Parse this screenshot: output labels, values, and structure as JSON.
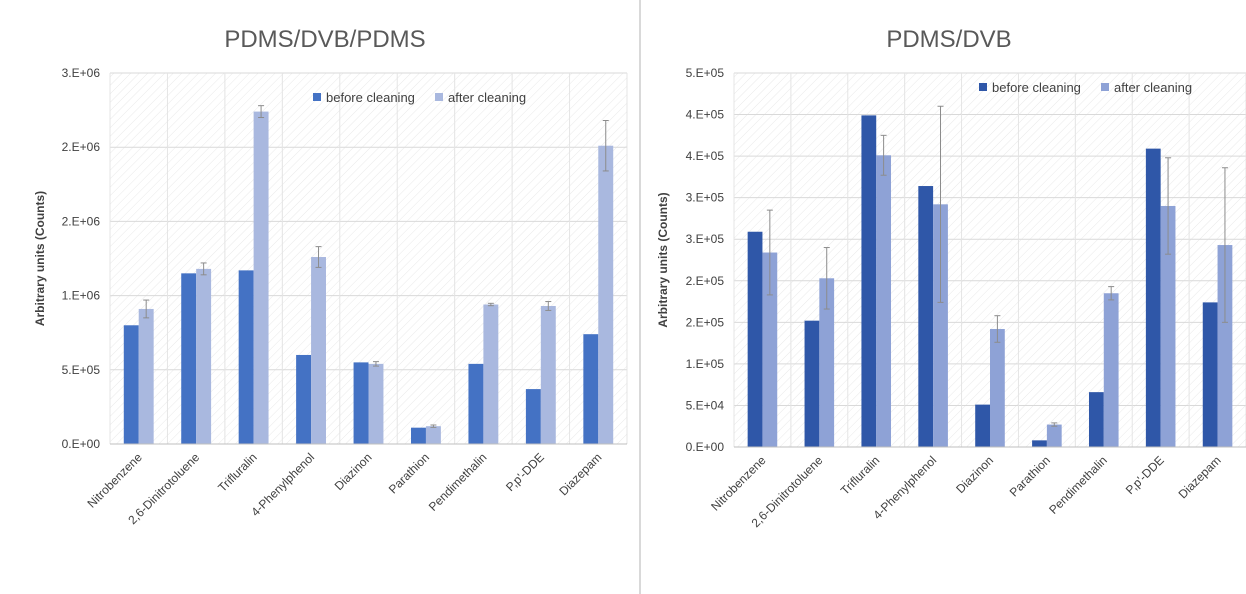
{
  "chart_data": [
    {
      "type": "bar",
      "title": "PDMS/DVB/PDMS",
      "ylabel": "Arbitrary units (Counts)",
      "ylim": [
        0,
        2500000
      ],
      "yticks": [
        "0.E+00",
        "5.E+05",
        "1.E+06",
        "2.E+06",
        "2.E+06",
        "3.E+06"
      ],
      "categories": [
        "Nitrobenzene",
        "2,6-Dinitrotoluene",
        "Trifluralin",
        "4-Phenylphenol",
        "Diazinon",
        "Parathion",
        "Pendimethalin",
        "P,p'-DDE",
        "Diazepam"
      ],
      "series": [
        {
          "name": "before cleaning",
          "color": "#4472c4",
          "values": [
            800000,
            1150000,
            1170000,
            600000,
            550000,
            110000,
            540000,
            370000,
            740000
          ],
          "errors": [
            0,
            0,
            0,
            0,
            0,
            0,
            0,
            0,
            0
          ]
        },
        {
          "name": "after cleaning",
          "color": "#a9b8df",
          "values": [
            910000,
            1180000,
            2240000,
            1260000,
            540000,
            120000,
            940000,
            930000,
            2010000
          ],
          "errors": [
            60000,
            40000,
            40000,
            70000,
            15000,
            8000,
            8000,
            30000,
            170000
          ]
        }
      ],
      "legend_position": "top-right",
      "grid": true
    },
    {
      "type": "bar",
      "title": "PDMS/DVB",
      "ylabel": "Arbitrary units (Counts)",
      "ylim": [
        0,
        450000
      ],
      "yticks": [
        "0.E+00",
        "5.E+04",
        "1.E+05",
        "2.E+05",
        "2.E+05",
        "3.E+05",
        "3.E+05",
        "4.E+05",
        "4.E+05",
        "5.E+05"
      ],
      "categories": [
        "Nitrobenzene",
        "2,6-Dinitrotoluene",
        "Trifluralin",
        "4-Phenylphenol",
        "Diazinon",
        "Parathion",
        "Pendimethalin",
        "P,p'-DDE",
        "Diazepam"
      ],
      "series": [
        {
          "name": "before cleaning",
          "color": "#2f57a8",
          "values": [
            259000,
            152000,
            399000,
            314000,
            51000,
            8000,
            66000,
            359000,
            174000
          ],
          "errors": [
            0,
            0,
            0,
            0,
            0,
            0,
            0,
            0,
            0
          ]
        },
        {
          "name": "after cleaning",
          "color": "#8ea2d6",
          "values": [
            234000,
            203000,
            351000,
            292000,
            142000,
            27000,
            185000,
            290000,
            243000
          ],
          "errors": [
            51000,
            37000,
            24000,
            118000,
            16000,
            2000,
            8000,
            58000,
            93000
          ]
        }
      ],
      "legend_position": "top-right",
      "grid": true
    }
  ]
}
